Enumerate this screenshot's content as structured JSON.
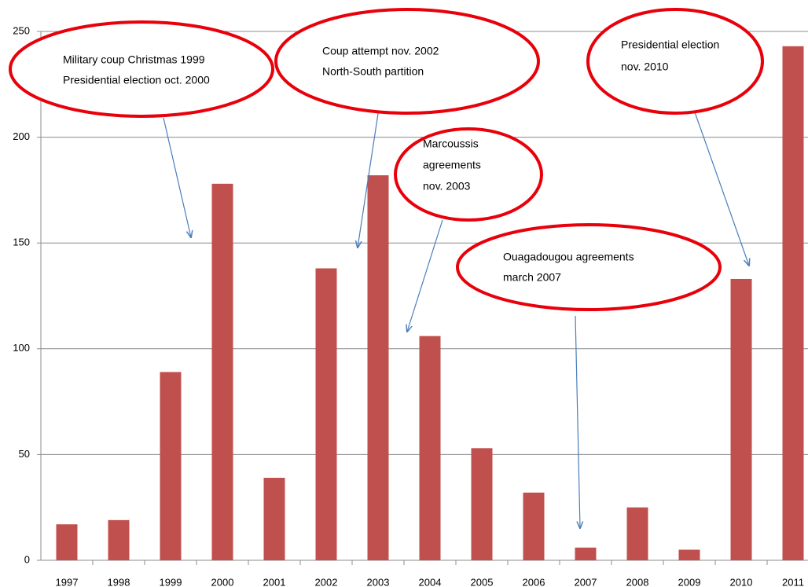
{
  "chart_data": {
    "type": "bar",
    "categories": [
      "1997",
      "1998",
      "1999",
      "2000",
      "2001",
      "2002",
      "2003",
      "2004",
      "2005",
      "2006",
      "2007",
      "2008",
      "2009",
      "2010",
      "2011"
    ],
    "values": [
      17,
      19,
      89,
      178,
      39,
      138,
      182,
      106,
      53,
      32,
      6,
      25,
      5,
      133,
      243
    ],
    "color": "#c0504d",
    "ylim": [
      0,
      250
    ],
    "yticks": [
      0,
      50,
      100,
      150,
      200,
      250
    ],
    "grid": true,
    "annotations": [
      {
        "lines": [
          "Military coup Christmas 1999",
          "Presidential election  oct. 2000"
        ]
      },
      {
        "lines": [
          "Coup attempt nov. 2002",
          "North-South partition"
        ]
      },
      {
        "lines": [
          "Marcoussis",
          "agreements",
          "nov. 2003"
        ]
      },
      {
        "lines": [
          "Ouagadougou agreements",
          "march 2007"
        ]
      },
      {
        "lines": [
          "Presidential election",
          "nov. 2010"
        ]
      }
    ]
  }
}
